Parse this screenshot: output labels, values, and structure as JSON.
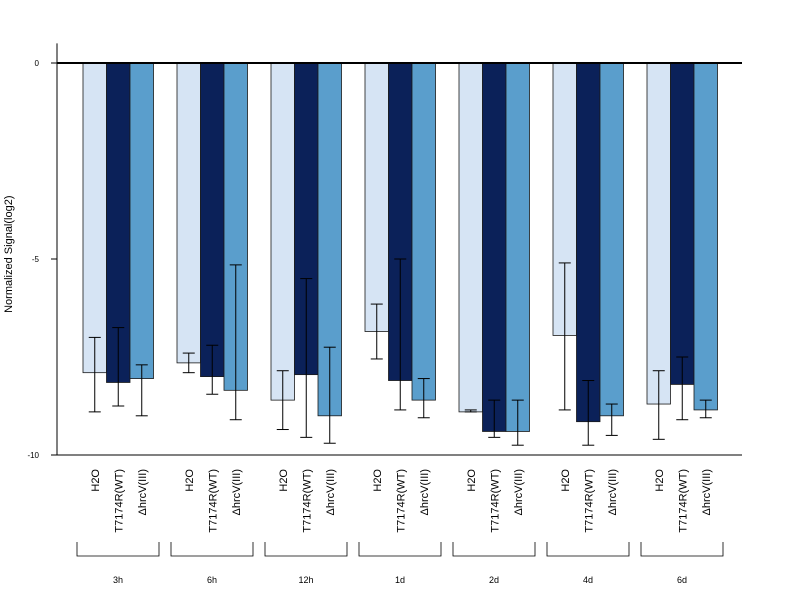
{
  "chart_data": {
    "type": "bar",
    "ylabel": "Normalized Signal(log2)",
    "xlabel": "",
    "title": "",
    "ylim": [
      -10,
      0.5
    ],
    "yticks": [
      0,
      -5,
      -10
    ],
    "series_labels": [
      "H2O",
      "T7174R(WT)",
      "ΔhrcV(III)"
    ],
    "colors": [
      "#d6e4f4",
      "#0b2159",
      "#5a9ecc"
    ],
    "groups": [
      {
        "label": "3h",
        "values": [
          -7.9,
          -8.15,
          -8.05
        ],
        "error_low": [
          -8.9,
          -8.75,
          -9.0
        ],
        "error_high": [
          -7.0,
          -6.75,
          -7.7
        ]
      },
      {
        "label": "6h",
        "values": [
          -7.65,
          -8.0,
          -8.35
        ],
        "error_low": [
          -7.9,
          -8.45,
          -9.1
        ],
        "error_high": [
          -7.4,
          -7.2,
          -5.15
        ]
      },
      {
        "label": "12h",
        "values": [
          -8.6,
          -7.95,
          -9.0
        ],
        "error_low": [
          -9.35,
          -9.55,
          -9.7
        ],
        "error_high": [
          -7.85,
          -5.5,
          -7.25
        ]
      },
      {
        "label": "1d",
        "values": [
          -6.85,
          -8.1,
          -8.6
        ],
        "error_low": [
          -7.55,
          -8.85,
          -9.05
        ],
        "error_high": [
          -6.15,
          -5.0,
          -8.05
        ]
      },
      {
        "label": "2d",
        "values": [
          -8.9,
          -9.4,
          -9.4
        ],
        "error_low": [
          -8.9,
          -9.55,
          -9.75
        ],
        "error_high": [
          -8.85,
          -8.6,
          -8.6
        ]
      },
      {
        "label": "4d",
        "values": [
          -6.95,
          -9.15,
          -9.0
        ],
        "error_low": [
          -8.85,
          -9.75,
          -9.5
        ],
        "error_high": [
          -5.1,
          -8.1,
          -8.7
        ]
      },
      {
        "label": "6d",
        "values": [
          -8.7,
          -8.2,
          -8.85
        ],
        "error_low": [
          -9.6,
          -9.1,
          -9.05
        ],
        "error_high": [
          -7.85,
          -7.5,
          -8.6
        ]
      }
    ]
  }
}
